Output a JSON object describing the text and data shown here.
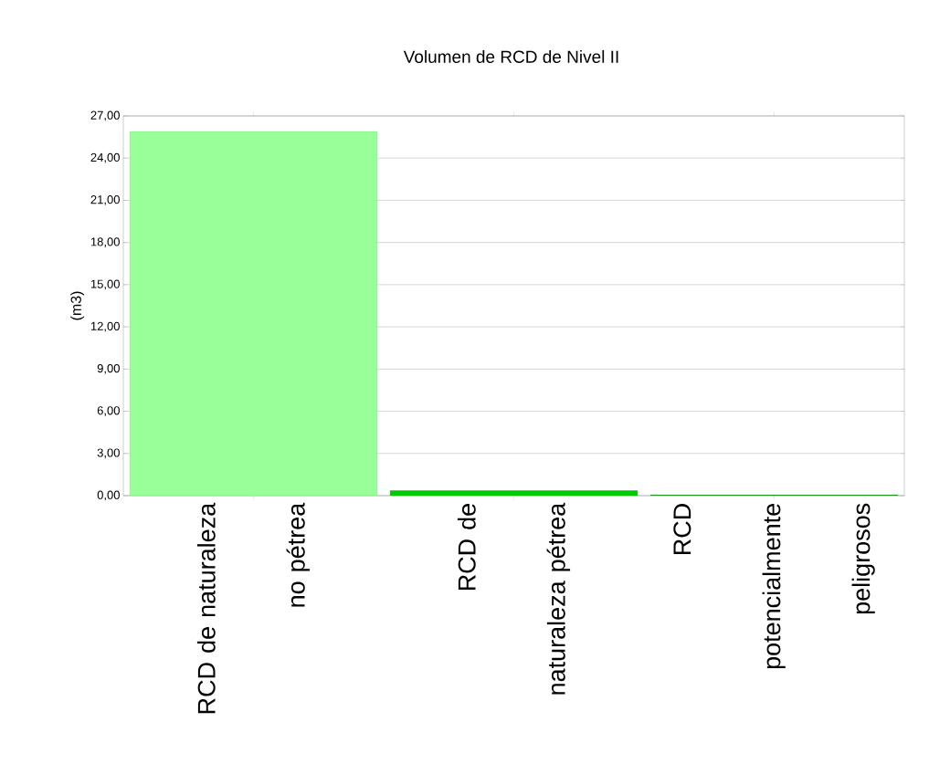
{
  "chart_data": {
    "type": "bar",
    "title": "Volumen de RCD de Nivel II",
    "ylabel": "(m3)",
    "categories": [
      "RCD de naturaleza no pétrea",
      "RCD de naturaleza pétrea",
      "RCD potencialmente peligrosos"
    ],
    "values": [
      25.9,
      0.35,
      0.05
    ],
    "colors": [
      "#99ff99",
      "#00cc00",
      "#009900"
    ],
    "ylim": [
      0,
      27
    ],
    "yticks": [
      {
        "value": 0,
        "label": "0,00"
      },
      {
        "value": 3,
        "label": "3,00"
      },
      {
        "value": 6,
        "label": "6,00"
      },
      {
        "value": 9,
        "label": "9,00"
      },
      {
        "value": 12,
        "label": "12,00"
      },
      {
        "value": 15,
        "label": "15,00"
      },
      {
        "value": 18,
        "label": "18,00"
      },
      {
        "value": 21,
        "label": "21,00"
      },
      {
        "value": 24,
        "label": "24,00"
      },
      {
        "value": 27,
        "label": "27,00"
      }
    ],
    "grid": "y"
  }
}
